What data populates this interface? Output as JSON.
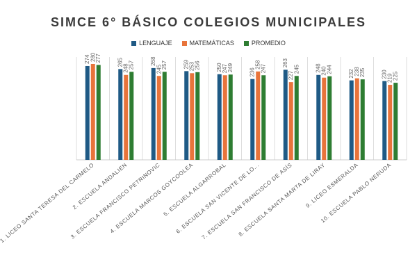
{
  "chart_data": {
    "type": "bar",
    "title": "SIMCE 6° BÁSICO COLEGIOS MUNICIPALES",
    "legend_position": "top",
    "grid": false,
    "ylim": [
      0,
      280
    ],
    "categories": [
      "1. LICEO SANTA TERESA DEL CARMELO",
      "2. ESCUELA ANDALIEN",
      "3. ESCUELA FRANCISCO PETRINOVIC",
      "4. ESCUELA MARCOS GOYCOOLEA",
      "5. ESCUELA ALGARROBAL",
      "6. ESCUELA SAN VICENTE DE LO...",
      "7. ESCUELA SAN FRANCISCO DE ASÍS",
      "8. ESCUELA SANTA MARTA DE LIRAY",
      "9. LICEO ESMERALDA",
      "10. ESCUELA PABLO NERUDA"
    ],
    "series": [
      {
        "name": "LENGUAJE",
        "color": "#1f5a85",
        "values": [
          274,
          265,
          268,
          259,
          250,
          236,
          263,
          248,
          232,
          230
        ]
      },
      {
        "name": "MATEMÁTICAS",
        "color": "#e8743b",
        "values": [
          280,
          248,
          245,
          253,
          247,
          258,
          227,
          240,
          238,
          219
        ]
      },
      {
        "name": "PROMEDIO",
        "color": "#2e7d32",
        "values": [
          277,
          257,
          257,
          256,
          249,
          247,
          245,
          244,
          235,
          225
        ]
      }
    ]
  }
}
